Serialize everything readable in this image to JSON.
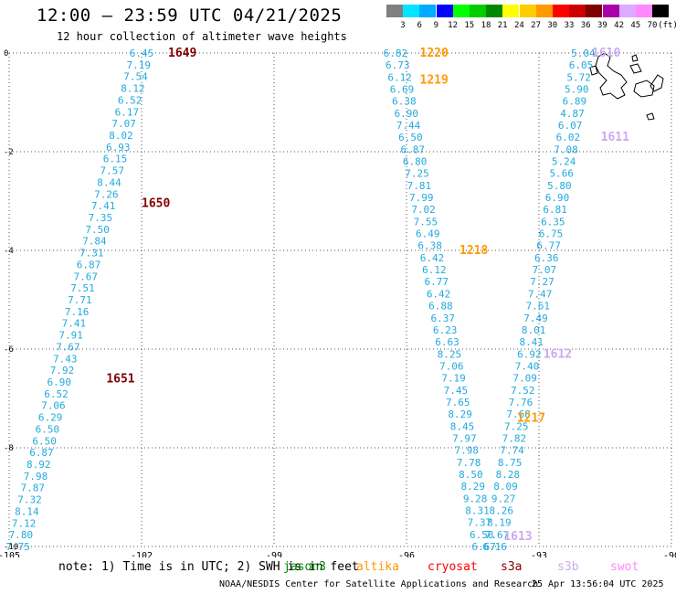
{
  "header": {
    "title": "12:00 – 23:59 UTC 04/21/2025",
    "subtitle": "12 hour collection of altimeter wave heights"
  },
  "color_scale": {
    "labels": [
      "3",
      "6",
      "9",
      "12",
      "15",
      "18",
      "21",
      "24",
      "27",
      "30",
      "33",
      "36",
      "39",
      "42",
      "45",
      "70"
    ],
    "unit": "(ft)",
    "colors": [
      "#808080",
      "#00e5ff",
      "#00aaff",
      "#0000ff",
      "#00ff00",
      "#00cc00",
      "#008800",
      "#ffff00",
      "#ffcc00",
      "#ff9900",
      "#ff0000",
      "#cc0000",
      "#800000",
      "#aa00aa",
      "#ddaaff",
      "#ff88ff",
      "#000000"
    ]
  },
  "axes": {
    "x_ticks": [
      "-105",
      "-102",
      "-99",
      "-96",
      "-93",
      "-90"
    ],
    "y_ticks": [
      "0",
      "-2",
      "-4",
      "-6",
      "-8",
      "-10"
    ],
    "lon_range": [
      -105,
      -90
    ],
    "lat_range": [
      -10,
      0
    ]
  },
  "tracks": [
    {
      "lon_top": -102.0,
      "lon_bottom": -104.8,
      "color": "#22aadd",
      "values": [
        "6.45",
        "7.19",
        "7.54",
        "8.12",
        "6.52",
        "6.17",
        "7.07",
        "8.02",
        "6.93",
        "6.15",
        "7.57",
        "8.44",
        "7.26",
        "7.41",
        "7.35",
        "7.50",
        "7.84",
        "7.31",
        "6.87",
        "7.67",
        "7.51",
        "7.71",
        "7.16",
        "7.41",
        "7.91",
        "7.67",
        "7.43",
        "7.92",
        "6.90",
        "6.52",
        "7.06",
        "6.29",
        "6.50",
        "6.50",
        "6.87",
        "8.92",
        "7.98",
        "7.87",
        "7.32",
        "8.14",
        "7.12",
        "7.80",
        "7.75"
      ]
    },
    {
      "lon_top": -96.25,
      "lon_bottom": -94.25,
      "color": "#22aadd",
      "values": [
        "6.82",
        "6.73",
        "6.12",
        "6.69",
        "6.38",
        "6.90",
        "7.44",
        "6.50",
        "6.87",
        "6.80",
        "7.25",
        "7.81",
        "7.99",
        "7.02",
        "7.55",
        "6.49",
        "6.38",
        "6.42",
        "6.12",
        "6.77",
        "6.42",
        "6.88",
        "6.37",
        "6.23",
        "6.63",
        "8.25",
        "7.06",
        "7.19",
        "7.45",
        "7.65",
        "8.29",
        "8.45",
        "7.97",
        "7.98",
        "7.78",
        "8.50",
        "8.29",
        "9.28",
        "8.31",
        "7.37",
        "6.58",
        "6.67"
      ]
    },
    {
      "lon_top": -92.0,
      "lon_bottom": -94.0,
      "color": "#22aadd",
      "values": [
        "5.04",
        "6.05",
        "5.72",
        "5.90",
        "6.89",
        "4.87",
        "6.07",
        "6.02",
        "7.08",
        "5.24",
        "5.66",
        "5.80",
        "6.90",
        "6.81",
        "6.35",
        "6.75",
        "6.77",
        "6.36",
        "7.07",
        "7.27",
        "7.47",
        "7.61",
        "7.49",
        "8.01",
        "8.41",
        "6.92",
        "7.40",
        "7.09",
        "7.52",
        "7.76",
        "7.68",
        "7.25",
        "7.82",
        "7.74",
        "8.75",
        "8.28",
        "8.09",
        "9.27",
        "8.26",
        "8.19",
        "7.67",
        "6.16"
      ]
    }
  ],
  "pass_labels": [
    {
      "text": "1649",
      "lon": -101.4,
      "lat": 0.0,
      "color": "#800000"
    },
    {
      "text": "1650",
      "lon": -102.0,
      "lat": -3.05,
      "color": "#800000"
    },
    {
      "text": "1651",
      "lon": -102.8,
      "lat": -6.6,
      "color": "#800000"
    },
    {
      "text": "1220",
      "lon": -95.7,
      "lat": 0.0,
      "color": "#ff9900"
    },
    {
      "text": "1219",
      "lon": -95.7,
      "lat": -0.55,
      "color": "#ff9900"
    },
    {
      "text": "1218",
      "lon": -94.8,
      "lat": -4.0,
      "color": "#ff9900"
    },
    {
      "text": "1217",
      "lon": -93.5,
      "lat": -7.4,
      "color": "#ff9900"
    },
    {
      "text": "1610",
      "lon": -91.8,
      "lat": 0.0,
      "color": "#ccaaee"
    },
    {
      "text": "1611",
      "lon": -91.6,
      "lat": -1.7,
      "color": "#ccaaee"
    },
    {
      "text": "1612",
      "lon": -92.9,
      "lat": -6.1,
      "color": "#ccaaee"
    },
    {
      "text": "1613",
      "lon": -93.8,
      "lat": -9.8,
      "color": "#ccaaee"
    }
  ],
  "footer": {
    "note": "note: 1) Time is in UTC; 2) SWH is in feet",
    "satellites": [
      {
        "name": "jason3",
        "color": "#008800"
      },
      {
        "name": "altika",
        "color": "#ff9900"
      },
      {
        "name": "cryosat",
        "color": "#ff0000"
      },
      {
        "name": "s3a",
        "color": "#800000"
      },
      {
        "name": "s3b",
        "color": "#ccaaee"
      },
      {
        "name": "swot",
        "color": "#ff88ff"
      }
    ],
    "credit": "NOAA/NESDIS Center for Satellite Applications and Research",
    "timestamp": "25 Apr 13:56:04 UTC 2025"
  }
}
